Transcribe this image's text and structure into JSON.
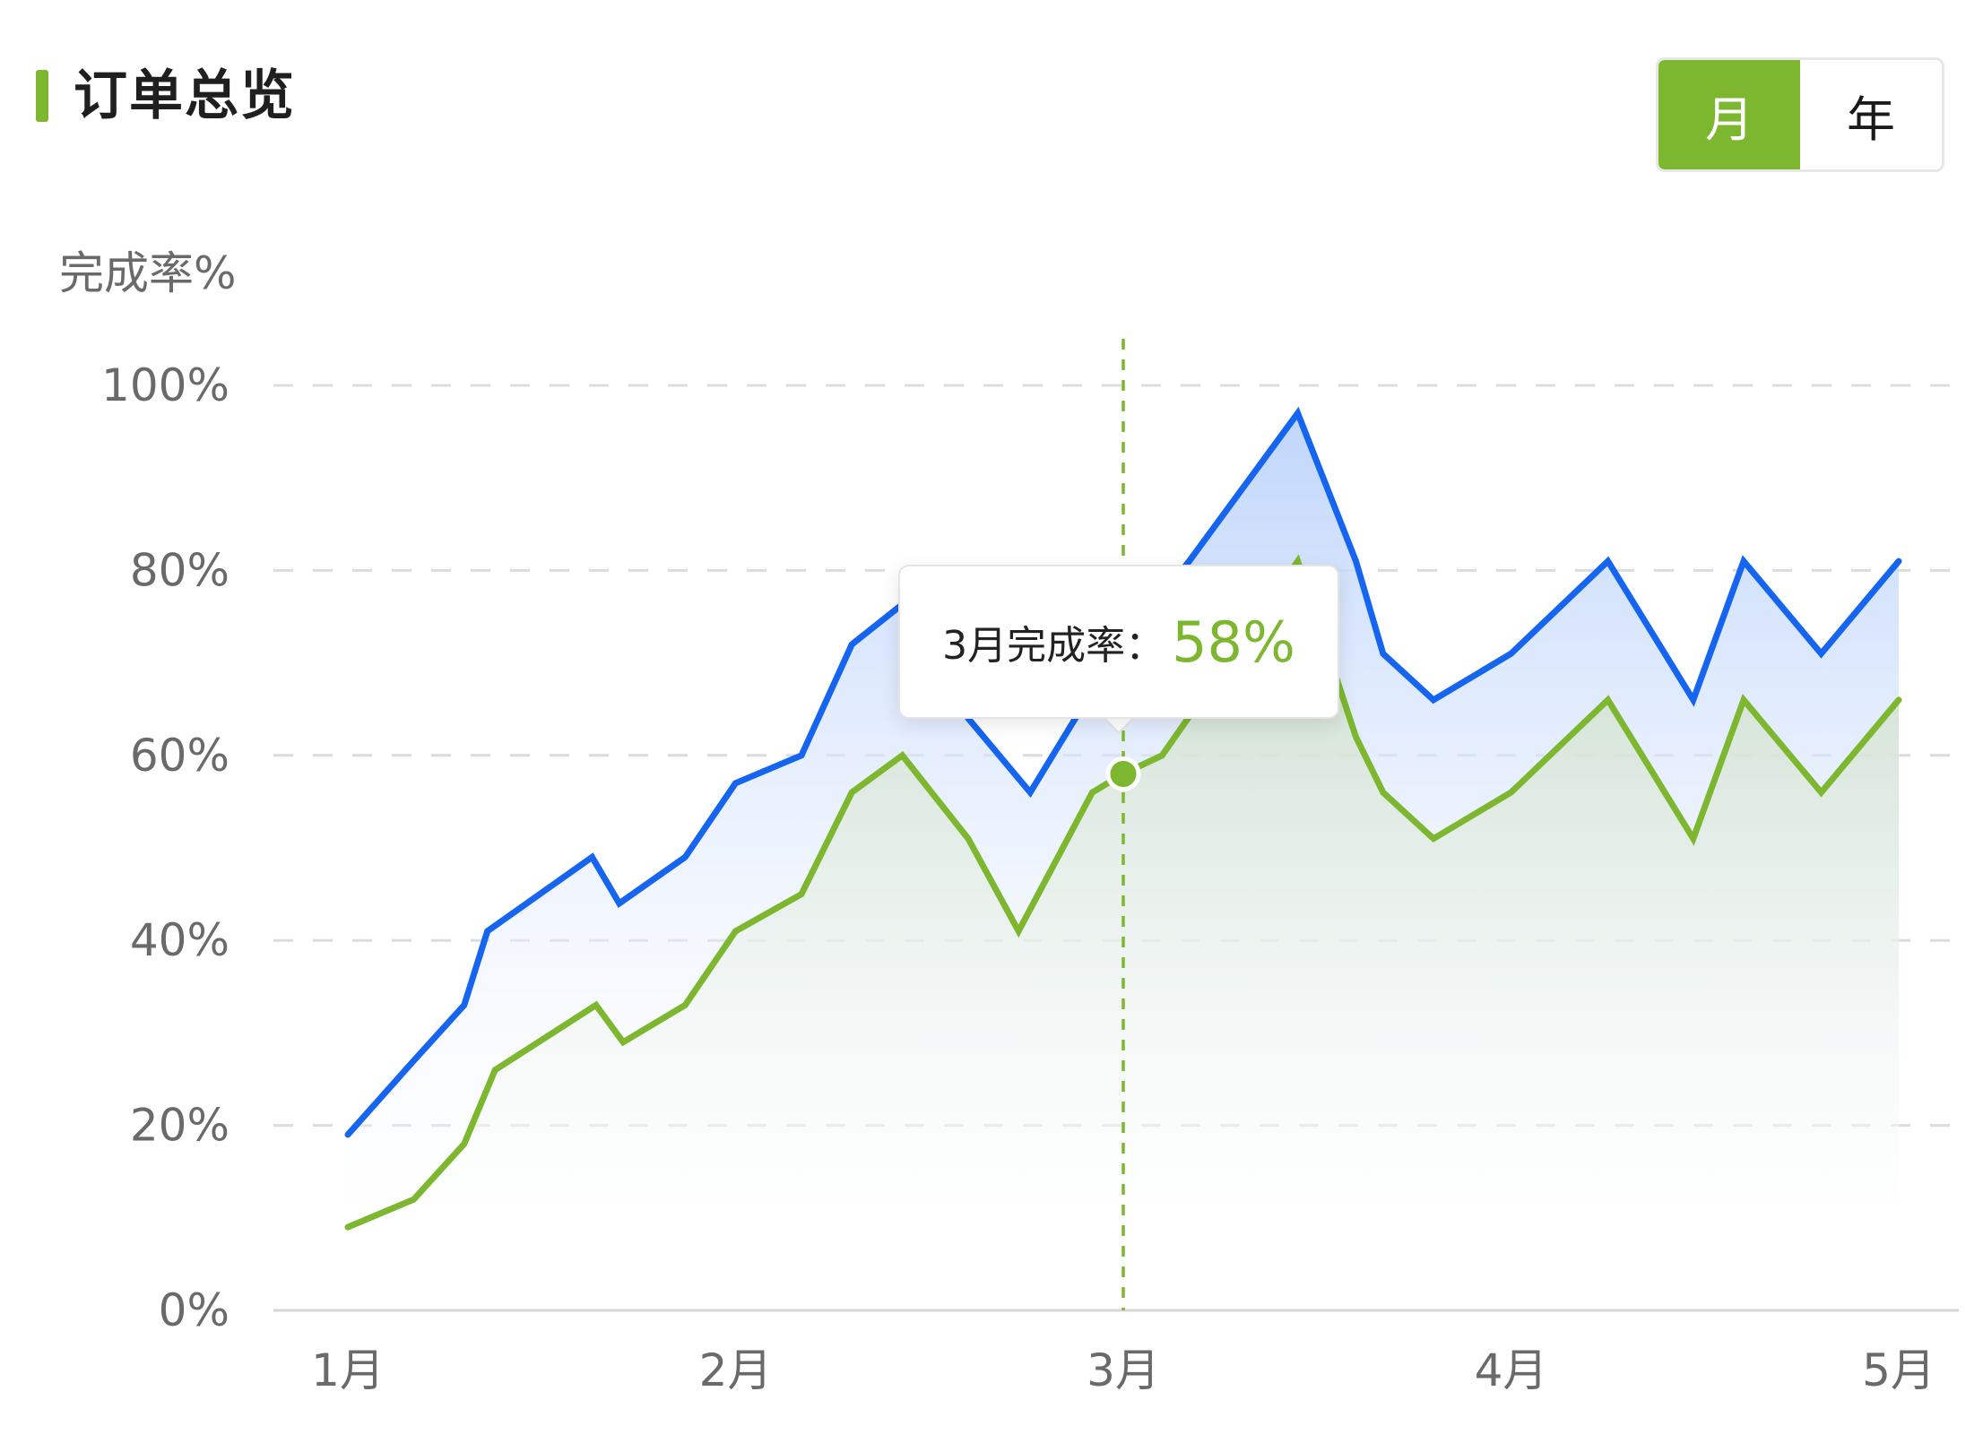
{
  "header": {
    "title": "订单总览",
    "toggle": [
      {
        "label": "月",
        "active": true
      },
      {
        "label": "年",
        "active": false
      }
    ]
  },
  "colors": {
    "accent_green": "#7db72f",
    "line_blue": "#1565f0",
    "line_green": "#7db72f",
    "grid": "#dcdcdc"
  },
  "tooltip": {
    "label": "3月完成率：",
    "value": "58%"
  },
  "chart_data": {
    "type": "area",
    "ylabel": "完成率%",
    "ylim": [
      0,
      100
    ],
    "yticks": [
      "0%",
      "20%",
      "40%",
      "60%",
      "80%",
      "100%"
    ],
    "xticks": [
      "1月",
      "2月",
      "3月",
      "4月",
      "5月"
    ],
    "xlim": [
      1,
      5
    ],
    "grid": true,
    "highlight_x": 3,
    "series": [
      {
        "color": "#1565f0",
        "x": [
          1.0,
          1.17,
          1.3,
          1.36,
          1.63,
          1.7,
          1.87,
          2.0,
          2.17,
          2.3,
          2.45,
          2.6,
          2.76,
          2.92,
          3.0,
          3.17,
          3.45,
          3.6,
          3.67,
          3.8,
          4.0,
          4.25,
          4.47,
          4.6,
          4.8,
          5.0
        ],
        "values": [
          19,
          27,
          33,
          41,
          49,
          44,
          49,
          57,
          60,
          72,
          77,
          64,
          56,
          67,
          72,
          81,
          97,
          81,
          71,
          66,
          71,
          81,
          66,
          81,
          71,
          81
        ]
      },
      {
        "color": "#7db72f",
        "x": [
          1.0,
          1.17,
          1.3,
          1.38,
          1.64,
          1.71,
          1.87,
          2.0,
          2.17,
          2.3,
          2.43,
          2.6,
          2.73,
          2.92,
          3.0,
          3.1,
          3.45,
          3.6,
          3.67,
          3.8,
          4.0,
          4.25,
          4.47,
          4.6,
          4.8,
          5.0
        ],
        "values": [
          9,
          12,
          18,
          26,
          33,
          29,
          33,
          41,
          45,
          56,
          60,
          51,
          41,
          56,
          58,
          60,
          81,
          62,
          56,
          51,
          56,
          66,
          51,
          66,
          56,
          66
        ]
      }
    ]
  }
}
